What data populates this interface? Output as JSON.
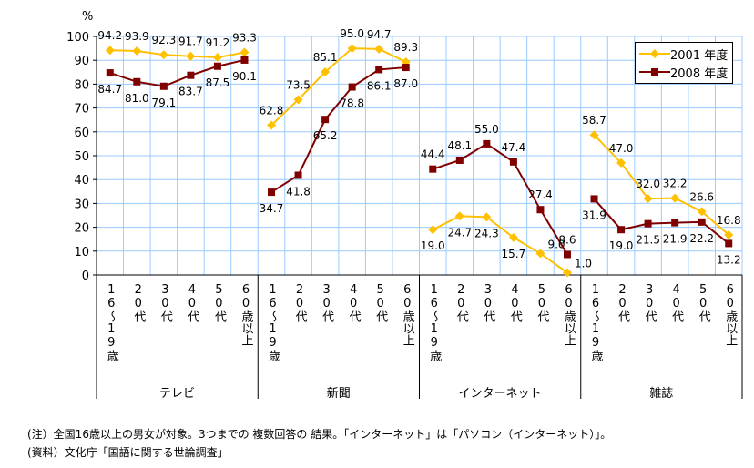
{
  "chart_data": {
    "type": "line",
    "ylabel": "%",
    "ylim": [
      0,
      100
    ],
    "yticks": [
      0,
      10,
      20,
      30,
      40,
      50,
      60,
      70,
      80,
      90,
      100
    ],
    "grid": true,
    "legend_position": "top-right",
    "groups": [
      "テレビ",
      "新聞",
      "インターネット",
      "雑誌"
    ],
    "age_categories": [
      "16～19歳",
      "20代",
      "30代",
      "40代",
      "50代",
      "60歳以上"
    ],
    "series": [
      {
        "name": "2001 年度",
        "color": "#ffc000",
        "marker": "diamond",
        "values": [
          [
            94.2,
            93.9,
            92.3,
            91.7,
            91.2,
            93.3
          ],
          [
            62.8,
            73.5,
            85.1,
            95.0,
            94.7,
            89.3
          ],
          [
            19.0,
            24.7,
            24.3,
            15.7,
            9.0,
            1.0
          ],
          [
            58.7,
            47.0,
            32.0,
            32.2,
            26.6,
            16.8
          ]
        ]
      },
      {
        "name": "2008 年度",
        "color": "#800000",
        "marker": "square",
        "values": [
          [
            84.7,
            81.0,
            79.1,
            83.7,
            87.5,
            90.1
          ],
          [
            34.7,
            41.8,
            65.2,
            78.8,
            86.1,
            87.0
          ],
          [
            44.4,
            48.1,
            55.0,
            47.4,
            27.4,
            8.6
          ],
          [
            31.9,
            19.0,
            21.5,
            21.9,
            22.2,
            13.2
          ]
        ]
      }
    ]
  },
  "notes": [
    "(注）全国16歳以上の男女が対象。3つまでの 複数回答の 結果。「インターネット」は「パソコン（インターネット）」。",
    "(資料）文化庁「国語に関する世論調査」"
  ]
}
